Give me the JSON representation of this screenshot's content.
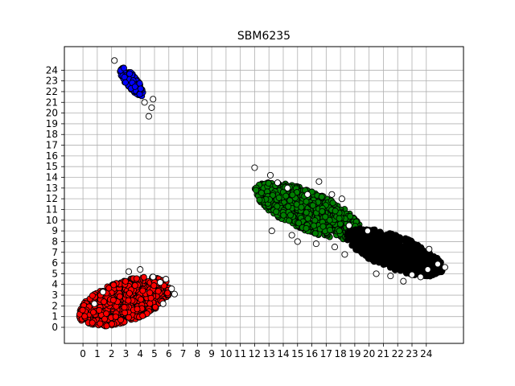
{
  "chart_data": {
    "type": "scatter",
    "title": "SBM6235",
    "xlabel": "",
    "ylabel": "",
    "xlim": [
      -1.3,
      26.6
    ],
    "ylim": [
      -1.5,
      26.2
    ],
    "x_ticks": [
      "0",
      "1",
      "2",
      "3",
      "4",
      "5",
      "6",
      "7",
      "8",
      "9",
      "10",
      "11",
      "12",
      "13",
      "14",
      "15",
      "16",
      "17",
      "18",
      "19",
      "20",
      "21",
      "22",
      "23",
      "24"
    ],
    "y_ticks": [
      "0",
      "1",
      "2",
      "3",
      "4",
      "5",
      "6",
      "7",
      "8",
      "9",
      "10",
      "11",
      "12",
      "13",
      "14",
      "15",
      "16",
      "17",
      "18",
      "19",
      "20",
      "21",
      "22",
      "23",
      "24"
    ],
    "grid": true,
    "clusters": [
      {
        "color": "#0000ff",
        "center": [
          3.4,
          22.9
        ],
        "axis": [
          0.55,
          -1.0
        ],
        "length": 3.0,
        "width": 0.9,
        "count": 140
      },
      {
        "color": "#ff0000",
        "center": [
          2.9,
          2.4
        ],
        "axis": [
          1.0,
          0.55
        ],
        "length": 7.0,
        "width": 3.6,
        "count": 700
      },
      {
        "color": "#008000",
        "center": [
          15.7,
          10.9
        ],
        "axis": [
          1.0,
          -0.62
        ],
        "length": 8.5,
        "width": 3.4,
        "count": 700
      },
      {
        "color": "#000000",
        "center": [
          21.8,
          7.0
        ],
        "axis": [
          1.0,
          -0.55
        ],
        "length": 7.5,
        "width": 3.0,
        "count": 700
      }
    ],
    "outliers": [
      [
        4.6,
        19.7
      ],
      [
        4.8,
        20.5
      ],
      [
        4.3,
        21.0
      ],
      [
        2.2,
        24.9
      ],
      [
        4.9,
        21.3
      ],
      [
        5.8,
        4.5
      ],
      [
        6.2,
        3.6
      ],
      [
        6.4,
        3.1
      ],
      [
        5.4,
        4.2
      ],
      [
        4.0,
        5.4
      ],
      [
        3.2,
        5.2
      ],
      [
        1.4,
        3.3
      ],
      [
        0.8,
        2.2
      ],
      [
        5.6,
        2.2
      ],
      [
        4.9,
        4.7
      ],
      [
        12.0,
        14.9
      ],
      [
        13.1,
        14.2
      ],
      [
        16.5,
        13.6
      ],
      [
        17.4,
        12.4
      ],
      [
        18.1,
        12.0
      ],
      [
        13.2,
        9.0
      ],
      [
        14.6,
        8.6
      ],
      [
        15.0,
        8.0
      ],
      [
        16.3,
        7.8
      ],
      [
        17.6,
        7.5
      ],
      [
        18.3,
        6.8
      ],
      [
        20.5,
        5.0
      ],
      [
        21.5,
        4.8
      ],
      [
        22.4,
        4.3
      ],
      [
        23.0,
        4.9
      ],
      [
        24.1,
        5.4
      ],
      [
        24.8,
        5.9
      ],
      [
        25.3,
        5.6
      ],
      [
        24.2,
        7.3
      ],
      [
        23.6,
        4.7
      ],
      [
        19.9,
        9.0
      ],
      [
        18.6,
        9.5
      ],
      [
        14.3,
        13.0
      ],
      [
        13.6,
        13.5
      ],
      [
        15.7,
        12.4
      ]
    ],
    "marker_edge_color": "#000000",
    "outlier_fill": "#ffffff"
  }
}
